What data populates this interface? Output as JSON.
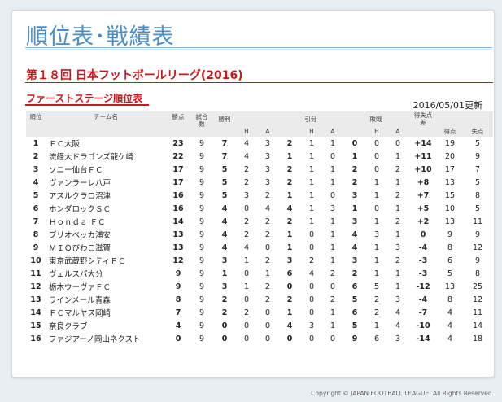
{
  "page_title": "順位表･戦績表",
  "league_title": "第１８回 日本フットボールリーグ(2016)",
  "stage_title": "ファーストステージ順位表",
  "updated": "2016/05/01更新",
  "headers": {
    "rank": "順位",
    "team": "チーム名",
    "points": "勝点",
    "played": "試合数",
    "wins": "勝利",
    "draws": "引分",
    "losses": "敗戦",
    "goal_diff": "得失点差",
    "goals_for": "得点",
    "goals_against": "失点",
    "home": "H",
    "away": "A"
  },
  "rows": [
    {
      "rank": "1",
      "team": "ＦＣ大阪",
      "pts": "23",
      "gp": "9",
      "w": "7",
      "wh": "4",
      "wa": "3",
      "d": "2",
      "dh": "1",
      "da": "1",
      "l": "0",
      "lh": "0",
      "la": "0",
      "gd": "+14",
      "gf": "19",
      "ga": "5"
    },
    {
      "rank": "2",
      "team": "流経大ドラゴンズ龍ケ崎",
      "pts": "22",
      "gp": "9",
      "w": "7",
      "wh": "4",
      "wa": "3",
      "d": "1",
      "dh": "1",
      "da": "0",
      "l": "1",
      "lh": "0",
      "la": "1",
      "gd": "+11",
      "gf": "20",
      "ga": "9"
    },
    {
      "rank": "3",
      "team": "ソニー仙台ＦＣ",
      "pts": "17",
      "gp": "9",
      "w": "5",
      "wh": "2",
      "wa": "3",
      "d": "2",
      "dh": "1",
      "da": "1",
      "l": "2",
      "lh": "0",
      "la": "2",
      "gd": "+10",
      "gf": "17",
      "ga": "7"
    },
    {
      "rank": "4",
      "team": "ヴァンラーレ八戸",
      "pts": "17",
      "gp": "9",
      "w": "5",
      "wh": "2",
      "wa": "3",
      "d": "2",
      "dh": "1",
      "da": "1",
      "l": "2",
      "lh": "1",
      "la": "1",
      "gd": "+8",
      "gf": "13",
      "ga": "5"
    },
    {
      "rank": "5",
      "team": "アスルクラロ沼津",
      "pts": "16",
      "gp": "9",
      "w": "5",
      "wh": "3",
      "wa": "2",
      "d": "1",
      "dh": "1",
      "da": "0",
      "l": "3",
      "lh": "1",
      "la": "2",
      "gd": "+7",
      "gf": "15",
      "ga": "8"
    },
    {
      "rank": "6",
      "team": "ホンダロックＳＣ",
      "pts": "16",
      "gp": "9",
      "w": "4",
      "wh": "0",
      "wa": "4",
      "d": "4",
      "dh": "1",
      "da": "3",
      "l": "1",
      "lh": "0",
      "la": "1",
      "gd": "+5",
      "gf": "10",
      "ga": "5"
    },
    {
      "rank": "7",
      "team": "Ｈｏｎｄａ ＦＣ",
      "pts": "14",
      "gp": "9",
      "w": "4",
      "wh": "2",
      "wa": "2",
      "d": "2",
      "dh": "1",
      "da": "1",
      "l": "3",
      "lh": "1",
      "la": "2",
      "gd": "+2",
      "gf": "13",
      "ga": "11"
    },
    {
      "rank": "8",
      "team": "ブリオベッカ浦安",
      "pts": "13",
      "gp": "9",
      "w": "4",
      "wh": "2",
      "wa": "2",
      "d": "1",
      "dh": "0",
      "da": "1",
      "l": "4",
      "lh": "3",
      "la": "1",
      "gd": "0",
      "gf": "9",
      "ga": "9"
    },
    {
      "rank": "9",
      "team": "ＭＩＯびわこ滋賀",
      "pts": "13",
      "gp": "9",
      "w": "4",
      "wh": "4",
      "wa": "0",
      "d": "1",
      "dh": "0",
      "da": "1",
      "l": "4",
      "lh": "1",
      "la": "3",
      "gd": "-4",
      "gf": "8",
      "ga": "12"
    },
    {
      "rank": "10",
      "team": "東京武蔵野シティＦＣ",
      "pts": "12",
      "gp": "9",
      "w": "3",
      "wh": "1",
      "wa": "2",
      "d": "3",
      "dh": "2",
      "da": "1",
      "l": "3",
      "lh": "1",
      "la": "2",
      "gd": "-3",
      "gf": "6",
      "ga": "9"
    },
    {
      "rank": "11",
      "team": "ヴェルスパ大分",
      "pts": "9",
      "gp": "9",
      "w": "1",
      "wh": "0",
      "wa": "1",
      "d": "6",
      "dh": "4",
      "da": "2",
      "l": "2",
      "lh": "1",
      "la": "1",
      "gd": "-3",
      "gf": "5",
      "ga": "8"
    },
    {
      "rank": "12",
      "team": "栃木ウーヴァＦＣ",
      "pts": "9",
      "gp": "9",
      "w": "3",
      "wh": "1",
      "wa": "2",
      "d": "0",
      "dh": "0",
      "da": "0",
      "l": "6",
      "lh": "5",
      "la": "1",
      "gd": "-12",
      "gf": "13",
      "ga": "25"
    },
    {
      "rank": "13",
      "team": "ラインメール青森",
      "pts": "8",
      "gp": "9",
      "w": "2",
      "wh": "0",
      "wa": "2",
      "d": "2",
      "dh": "0",
      "da": "2",
      "l": "5",
      "lh": "2",
      "la": "3",
      "gd": "-4",
      "gf": "8",
      "ga": "12"
    },
    {
      "rank": "14",
      "team": "ＦＣマルヤス岡崎",
      "pts": "7",
      "gp": "9",
      "w": "2",
      "wh": "2",
      "wa": "0",
      "d": "1",
      "dh": "0",
      "da": "1",
      "l": "6",
      "lh": "2",
      "la": "4",
      "gd": "-7",
      "gf": "4",
      "ga": "11"
    },
    {
      "rank": "15",
      "team": "奈良クラブ",
      "pts": "4",
      "gp": "9",
      "w": "0",
      "wh": "0",
      "wa": "0",
      "d": "4",
      "dh": "3",
      "da": "1",
      "l": "5",
      "lh": "1",
      "la": "4",
      "gd": "-10",
      "gf": "4",
      "ga": "14"
    },
    {
      "rank": "16",
      "team": "ファジアーノ岡山ネクスト",
      "pts": "0",
      "gp": "9",
      "w": "0",
      "wh": "0",
      "wa": "0",
      "d": "0",
      "dh": "0",
      "da": "0",
      "l": "9",
      "lh": "6",
      "la": "3",
      "gd": "-14",
      "gf": "4",
      "ga": "18"
    }
  ],
  "footer": "Copyright © JAPAN FOOTBALL LEAGUE. All Rights Reserved.",
  "colors": {
    "accent_blue": "#4a8ec9",
    "accent_red": "#c8161e",
    "header_bg": "#ebebeb"
  }
}
